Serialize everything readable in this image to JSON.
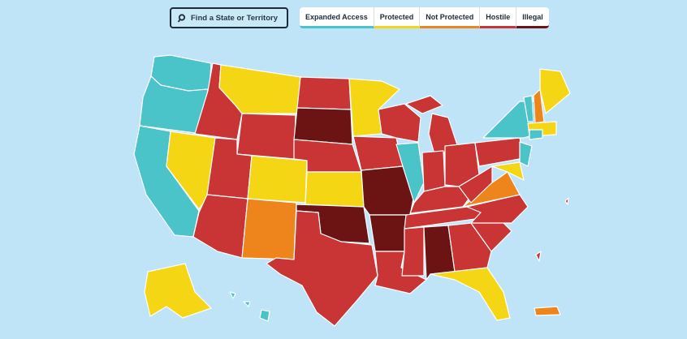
{
  "search": {
    "placeholder": "Find a State or Territory"
  },
  "legend": [
    {
      "label": "Expanded Access",
      "color": "#4ac3c9"
    },
    {
      "label": "Protected",
      "color": "#f4d614"
    },
    {
      "label": "Not Protected",
      "color": "#ee841c"
    },
    {
      "label": "Hostile",
      "color": "#c93434"
    },
    {
      "label": "Illegal",
      "color": "#6c1414"
    }
  ]
}
